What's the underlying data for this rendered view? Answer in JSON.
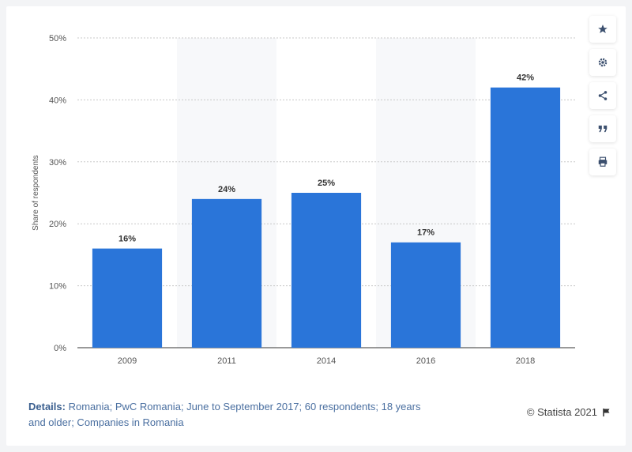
{
  "chart_data": {
    "type": "bar",
    "categories": [
      "2009",
      "2011",
      "2014",
      "2016",
      "2018"
    ],
    "values": [
      16,
      24,
      25,
      17,
      42
    ],
    "data_labels": [
      "16%",
      "24%",
      "25%",
      "17%",
      "42%"
    ],
    "ylabel": "Share of respondents",
    "ylim": [
      0,
      50
    ],
    "yticks": [
      "0%",
      "10%",
      "20%",
      "30%",
      "40%",
      "50%"
    ],
    "bar_color": "#2a75d9",
    "grid": true
  },
  "details": {
    "label": "Details:",
    "text": "Romania; PwC Romania; June to September 2017; 60 respondents; 18 years and older; Companies in Romania"
  },
  "credit": "© Statista 2021",
  "sidebar": {
    "buttons": [
      "star-icon",
      "gear-icon",
      "share-icon",
      "quote-icon",
      "print-icon"
    ]
  }
}
